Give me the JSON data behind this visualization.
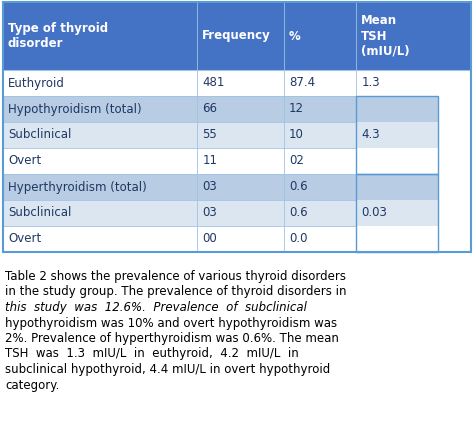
{
  "header_bg": "#4472C4",
  "header_text_color": "#FFFFFF",
  "row_bg_light": "#B8CCE4",
  "row_bg_white": "#FFFFFF",
  "row_bg_light2": "#DCE6F1",
  "text_color": "#1F3864",
  "headers": [
    "Type of thyroid\ndisorder",
    "Frequency",
    "%",
    "Mean\nTSH\n(mIU/L)"
  ],
  "rows": [
    {
      "label": "Euthyroid",
      "freq": "481",
      "pct": "87.4",
      "bg": "white"
    },
    {
      "label": "Hypothyroidism (total)",
      "freq": "66",
      "pct": "12",
      "bg": "light"
    },
    {
      "label": "Subclinical",
      "freq": "55",
      "pct": "10",
      "bg": "light2"
    },
    {
      "label": "Overt",
      "freq": "11",
      "pct": "02",
      "bg": "white"
    },
    {
      "label": "Hyperthyroidism (total)",
      "freq": "03",
      "pct": "0.6",
      "bg": "light"
    },
    {
      "label": "Subclinical",
      "freq": "03",
      "pct": "0.6",
      "bg": "light2"
    },
    {
      "label": "Overt",
      "freq": "00",
      "pct": "0.0",
      "bg": "white"
    }
  ],
  "tsh_spans": [
    {
      "rows": [
        0
      ],
      "value": "1.3",
      "bg": "white"
    },
    {
      "rows": [
        1,
        2,
        3
      ],
      "value": "4.3",
      "bg": "light"
    },
    {
      "rows": [
        4,
        5,
        6
      ],
      "value": "0.03",
      "bg": "light"
    }
  ],
  "caption_lines": [
    "Table 2 shows the prevalence of various thyroid disorders",
    "in the study group. The prevalence of thyroid disorders in",
    "this  study  was  12.6%.  Prevalence  of  subclinical",
    "hypothyroidism was 10% and overt hypothyroidism was",
    "2%. Prevalence of hyperthyroidism was 0.6%. The mean",
    "TSH  was  1.3  mIU/L  in  euthyroid,  4.2  mIU/L  in",
    "subclinical hypothyroid, 4.4 mIU/L in overt hypothyroid",
    "category."
  ],
  "figsize": [
    4.74,
    4.46
  ],
  "dpi": 100
}
